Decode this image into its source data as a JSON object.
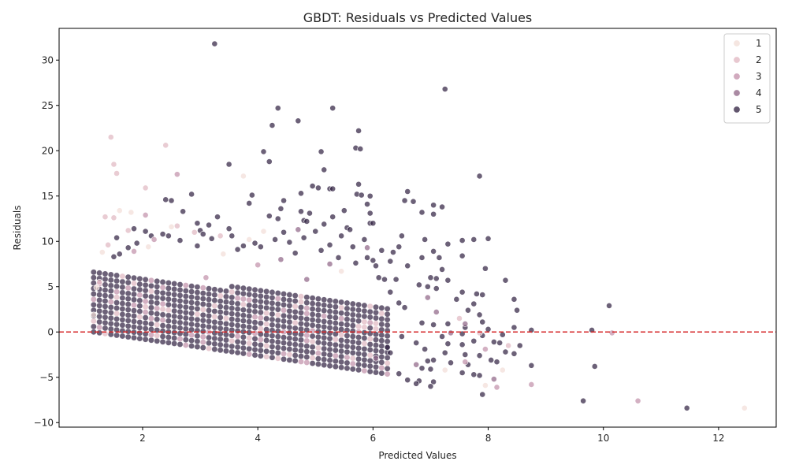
{
  "chart_data": {
    "type": "scatter",
    "title": "GBDT: Residuals vs Predicted Values",
    "xlabel": "Predicted Values",
    "ylabel": "Residuals",
    "xlim": [
      0.55,
      13.0
    ],
    "ylim": [
      -10.5,
      33.5
    ],
    "xticks": [
      2,
      4,
      6,
      8,
      10,
      12
    ],
    "yticks": [
      -10,
      -5,
      0,
      5,
      10,
      15,
      20,
      25,
      30
    ],
    "reference_line": {
      "y": 0,
      "color": "#d62728",
      "style": "dashed"
    },
    "grid": false,
    "legend_position": "top-right",
    "hue_levels": [
      {
        "name": "1",
        "color": "#f2ddd7"
      },
      {
        "name": "2",
        "color": "#e0b6c0"
      },
      {
        "name": "3",
        "color": "#c18ea8"
      },
      {
        "name": "4",
        "color": "#8d6384"
      },
      {
        "name": "5",
        "color": "#2d1e3e"
      }
    ],
    "band": {
      "description_free": true,
      "x_range": [
        1.15,
        6.3
      ],
      "lower_edge_at_x_min": 0.0,
      "lower_edge_slope": -0.91,
      "upper_edge_at_x_min": 6.9,
      "upper_edge_slope": -0.78
    },
    "series": [
      {
        "name": "5",
        "points": [
          [
            3.25,
            31.8
          ],
          [
            7.25,
            26.8
          ],
          [
            4.35,
            24.7
          ],
          [
            5.3,
            24.7
          ],
          [
            4.7,
            23.3
          ],
          [
            4.25,
            22.8
          ],
          [
            5.75,
            22.2
          ],
          [
            5.7,
            20.3
          ],
          [
            5.78,
            20.2
          ],
          [
            4.1,
            19.9
          ],
          [
            5.1,
            19.9
          ],
          [
            4.2,
            18.8
          ],
          [
            3.5,
            18.5
          ],
          [
            5.15,
            17.9
          ],
          [
            7.85,
            17.2
          ],
          [
            5.75,
            16.3
          ],
          [
            4.95,
            16.1
          ],
          [
            5.05,
            15.9
          ],
          [
            5.25,
            15.8
          ],
          [
            5.3,
            15.8
          ],
          [
            6.6,
            15.5
          ],
          [
            3.9,
            15.1
          ],
          [
            4.75,
            15.3
          ],
          [
            5.72,
            15.2
          ],
          [
            5.8,
            15.1
          ],
          [
            5.95,
            15.0
          ],
          [
            2.85,
            15.2
          ],
          [
            2.4,
            14.6
          ],
          [
            2.5,
            14.5
          ],
          [
            4.45,
            14.5
          ],
          [
            6.55,
            14.5
          ],
          [
            6.7,
            14.4
          ],
          [
            3.85,
            14.2
          ],
          [
            5.9,
            14.1
          ],
          [
            7.05,
            14.0
          ],
          [
            7.2,
            13.8
          ],
          [
            2.7,
            13.3
          ],
          [
            4.4,
            13.6
          ],
          [
            4.75,
            13.3
          ],
          [
            5.5,
            13.4
          ],
          [
            6.85,
            13.2
          ],
          [
            5.95,
            13.1
          ],
          [
            7.05,
            13.0
          ],
          [
            4.9,
            13.1
          ],
          [
            4.2,
            12.8
          ],
          [
            3.3,
            12.7
          ],
          [
            5.3,
            12.7
          ],
          [
            4.35,
            12.5
          ],
          [
            4.8,
            12.3
          ],
          [
            4.85,
            12.2
          ],
          [
            5.15,
            11.9
          ],
          [
            5.95,
            12.0
          ],
          [
            6.0,
            12.0
          ],
          [
            2.95,
            12.0
          ],
          [
            3.15,
            11.8
          ],
          [
            3.0,
            11.2
          ],
          [
            5.55,
            11.5
          ],
          [
            5.6,
            11.3
          ],
          [
            3.5,
            11.4
          ],
          [
            5.0,
            11.1
          ],
          [
            4.45,
            11.0
          ],
          [
            7.55,
            10.1
          ],
          [
            7.75,
            10.2
          ],
          [
            8.0,
            10.3
          ],
          [
            6.5,
            10.6
          ],
          [
            6.9,
            10.2
          ],
          [
            7.3,
            9.7
          ],
          [
            7.05,
            8.9
          ],
          [
            7.55,
            8.4
          ],
          [
            6.35,
            8.8
          ],
          [
            6.85,
            8.2
          ],
          [
            7.15,
            8.2
          ],
          [
            7.95,
            7.0
          ],
          [
            6.0,
            7.9
          ],
          [
            6.6,
            7.3
          ],
          [
            7.2,
            6.9
          ],
          [
            7.0,
            6.0
          ],
          [
            7.1,
            5.9
          ],
          [
            7.3,
            5.7
          ],
          [
            8.3,
            5.7
          ],
          [
            6.8,
            5.2
          ],
          [
            6.95,
            5.0
          ],
          [
            7.1,
            4.8
          ],
          [
            7.55,
            4.4
          ],
          [
            7.8,
            4.2
          ],
          [
            7.9,
            4.1
          ],
          [
            8.45,
            3.6
          ],
          [
            7.45,
            3.6
          ],
          [
            7.75,
            3.1
          ],
          [
            7.65,
            2.4
          ],
          [
            7.85,
            1.9
          ],
          [
            8.5,
            2.4
          ],
          [
            7.9,
            1.1
          ],
          [
            6.85,
            1.0
          ],
          [
            7.05,
            0.8
          ],
          [
            7.3,
            0.9
          ],
          [
            7.6,
            0.5
          ],
          [
            8.0,
            0.3
          ],
          [
            8.45,
            0.5
          ],
          [
            7.55,
            -0.2
          ],
          [
            7.9,
            -0.4
          ],
          [
            8.25,
            -0.3
          ],
          [
            8.75,
            0.2
          ],
          [
            7.2,
            -0.5
          ],
          [
            6.5,
            -0.5
          ],
          [
            6.75,
            -1.2
          ],
          [
            7.3,
            -1.3
          ],
          [
            7.55,
            -1.4
          ],
          [
            7.75,
            -1.0
          ],
          [
            8.1,
            -1.1
          ],
          [
            8.2,
            -1.2
          ],
          [
            8.55,
            -1.5
          ],
          [
            6.9,
            -1.9
          ],
          [
            7.25,
            -2.3
          ],
          [
            7.6,
            -2.5
          ],
          [
            7.85,
            -2.6
          ],
          [
            8.3,
            -2.2
          ],
          [
            8.45,
            -2.4
          ],
          [
            7.05,
            -3.1
          ],
          [
            7.35,
            -3.4
          ],
          [
            7.65,
            -3.6
          ],
          [
            8.05,
            -3.1
          ],
          [
            8.15,
            -3.3
          ],
          [
            6.85,
            -4.0
          ],
          [
            7.0,
            -4.1
          ],
          [
            7.55,
            -4.5
          ],
          [
            7.75,
            -4.7
          ],
          [
            7.85,
            -4.8
          ],
          [
            8.75,
            -3.7
          ],
          [
            6.8,
            -5.4
          ],
          [
            7.05,
            -5.5
          ],
          [
            7.0,
            -6.0
          ],
          [
            7.9,
            -6.9
          ],
          [
            9.85,
            -3.8
          ],
          [
            10.1,
            2.9
          ],
          [
            9.8,
            0.2
          ],
          [
            9.65,
            -7.6
          ],
          [
            11.45,
            -8.4
          ],
          [
            6.75,
            -5.7
          ],
          [
            6.6,
            -5.3
          ],
          [
            6.45,
            -4.6
          ],
          [
            6.95,
            -3.2
          ],
          [
            6.3,
            -2.3
          ],
          [
            6.25,
            -1.7
          ],
          [
            6.05,
            7.3
          ],
          [
            6.1,
            6.0
          ],
          [
            6.2,
            5.8
          ],
          [
            6.3,
            4.4
          ],
          [
            6.45,
            3.2
          ],
          [
            6.55,
            2.7
          ],
          [
            6.4,
            5.8
          ],
          [
            6.45,
            9.4
          ],
          [
            6.3,
            7.8
          ],
          [
            6.15,
            9.0
          ],
          [
            5.85,
            10.2
          ],
          [
            5.9,
            8.2
          ],
          [
            5.65,
            9.4
          ],
          [
            5.45,
            10.6
          ],
          [
            5.25,
            9.6
          ],
          [
            4.8,
            10.4
          ],
          [
            4.55,
            9.9
          ],
          [
            4.3,
            10.2
          ],
          [
            3.95,
            9.8
          ],
          [
            3.75,
            9.5
          ],
          [
            3.55,
            10.6
          ],
          [
            3.2,
            10.3
          ],
          [
            2.95,
            9.5
          ],
          [
            2.65,
            10.1
          ],
          [
            2.35,
            10.8
          ],
          [
            2.15,
            10.6
          ],
          [
            2.05,
            11.1
          ],
          [
            1.9,
            9.8
          ],
          [
            1.75,
            9.3
          ],
          [
            1.6,
            8.6
          ],
          [
            1.5,
            8.3
          ],
          [
            1.55,
            10.4
          ],
          [
            1.85,
            11.4
          ],
          [
            2.45,
            10.6
          ],
          [
            3.05,
            10.8
          ],
          [
            3.65,
            9.1
          ],
          [
            4.05,
            9.4
          ],
          [
            4.65,
            8.7
          ],
          [
            5.1,
            9.0
          ],
          [
            5.4,
            8.2
          ],
          [
            5.7,
            7.6
          ]
        ]
      },
      {
        "name": "4",
        "points": [
          [
            4.7,
            11.3
          ],
          [
            4.4,
            8.0
          ],
          [
            4.85,
            5.8
          ],
          [
            6.95,
            3.8
          ],
          [
            7.1,
            2.2
          ],
          [
            6.75,
            -3.6
          ],
          [
            7.6,
            0.9
          ],
          [
            5.9,
            9.3
          ],
          [
            5.25,
            7.5
          ],
          [
            7.35,
            -0.1
          ],
          [
            8.1,
            -5.2
          ],
          [
            6.05,
            -2.9
          ]
        ]
      },
      {
        "name": "3",
        "points": [
          [
            2.6,
            17.4
          ],
          [
            2.05,
            12.9
          ],
          [
            2.2,
            10.2
          ],
          [
            7.95,
            -1.9
          ],
          [
            8.15,
            -6.1
          ],
          [
            8.75,
            -5.8
          ],
          [
            10.6,
            -7.6
          ],
          [
            10.15,
            -0.1
          ],
          [
            7.6,
            -3.3
          ],
          [
            4.0,
            7.4
          ],
          [
            3.1,
            6.0
          ],
          [
            1.85,
            8.9
          ]
        ]
      },
      {
        "name": "2",
        "points": [
          [
            1.45,
            21.5
          ],
          [
            1.5,
            18.5
          ],
          [
            2.4,
            20.6
          ],
          [
            2.05,
            15.9
          ],
          [
            1.55,
            17.5
          ],
          [
            1.35,
            12.7
          ],
          [
            1.5,
            12.6
          ],
          [
            2.6,
            11.7
          ],
          [
            1.75,
            11.2
          ],
          [
            7.5,
            1.5
          ],
          [
            7.85,
            -0.1
          ],
          [
            8.35,
            -1.5
          ],
          [
            2.9,
            11.0
          ],
          [
            3.35,
            10.6
          ],
          [
            1.4,
            9.6
          ],
          [
            1.25,
            5.5
          ]
        ]
      },
      {
        "name": "1",
        "points": [
          [
            3.75,
            17.2
          ],
          [
            1.6,
            13.4
          ],
          [
            1.8,
            13.2
          ],
          [
            2.5,
            11.6
          ],
          [
            1.3,
            8.8
          ],
          [
            1.2,
            4.9
          ],
          [
            1.15,
            1.9
          ],
          [
            4.1,
            11.1
          ],
          [
            3.85,
            10.2
          ],
          [
            2.1,
            9.4
          ],
          [
            7.25,
            -4.2
          ],
          [
            8.25,
            -4.2
          ],
          [
            12.45,
            -8.4
          ],
          [
            7.95,
            -5.9
          ],
          [
            5.45,
            6.7
          ],
          [
            3.4,
            8.6
          ]
        ]
      }
    ]
  }
}
